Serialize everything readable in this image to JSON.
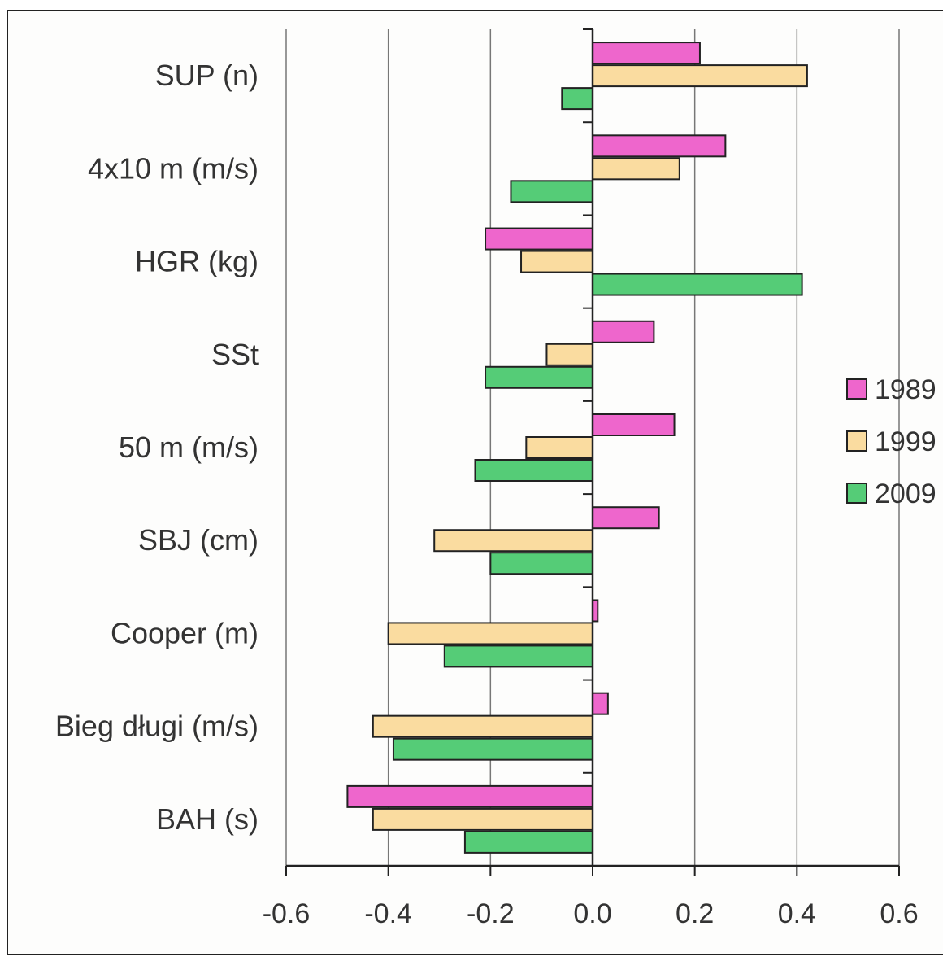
{
  "chart_data": {
    "type": "bar",
    "orientation": "horizontal",
    "categories": [
      "SUP (n)",
      "4x10 m (m/s)",
      "HGR (kg)",
      "SSt",
      "50 m (m/s)",
      "SBJ (cm)",
      "Cooper (m)",
      "Bieg długi (m/s)",
      "BAH (s)"
    ],
    "series": [
      {
        "name": "1989",
        "color": "#ee66cc",
        "values": [
          0.21,
          0.26,
          -0.21,
          0.12,
          0.16,
          0.13,
          0.01,
          0.03,
          -0.48
        ]
      },
      {
        "name": "1999",
        "color": "#fadca0",
        "values": [
          0.42,
          0.17,
          -0.14,
          -0.09,
          -0.13,
          -0.31,
          -0.4,
          -0.43,
          -0.43
        ]
      },
      {
        "name": "2009",
        "color": "#55cc77",
        "values": [
          -0.06,
          -0.16,
          0.41,
          -0.21,
          -0.23,
          -0.2,
          -0.29,
          -0.39,
          -0.25
        ]
      }
    ],
    "xlim": [
      -0.6,
      0.6
    ],
    "xticks": [
      "-0.6",
      "-0.4",
      "-0.2",
      "0.0",
      "0.2",
      "0.4",
      "0.6"
    ],
    "grid": "vertical",
    "legend_position": "right",
    "title": "",
    "xlabel": "",
    "ylabel": ""
  }
}
